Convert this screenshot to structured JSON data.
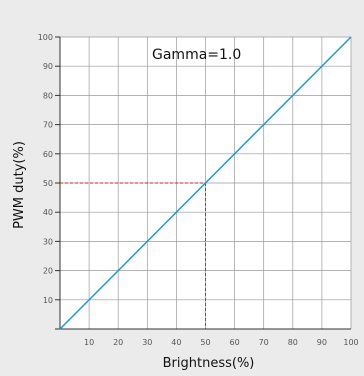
{
  "chart_data": {
    "type": "line",
    "title": "",
    "annotation": "Gamma=1.0",
    "xlabel": "Brightness(%)",
    "ylabel": "PWM duty(%)",
    "xlim": [
      0,
      100
    ],
    "ylim": [
      0,
      100
    ],
    "xticks": [
      10,
      20,
      30,
      40,
      50,
      60,
      70,
      80,
      90,
      100
    ],
    "yticks": [
      10,
      20,
      30,
      40,
      50,
      60,
      70,
      80,
      90,
      100
    ],
    "grid": true,
    "series": [
      {
        "x": [
          0,
          100
        ],
        "y": [
          0,
          100
        ],
        "color": "#1e9bd4"
      }
    ],
    "reference_point": {
      "x": 50,
      "y": 50,
      "color": "#c42b2b",
      "style": "dashed"
    }
  },
  "colors": {
    "background": "#ebebeb",
    "plot_background": "#ffffff",
    "grid": "#9a9a9a",
    "axis": "#333333"
  }
}
